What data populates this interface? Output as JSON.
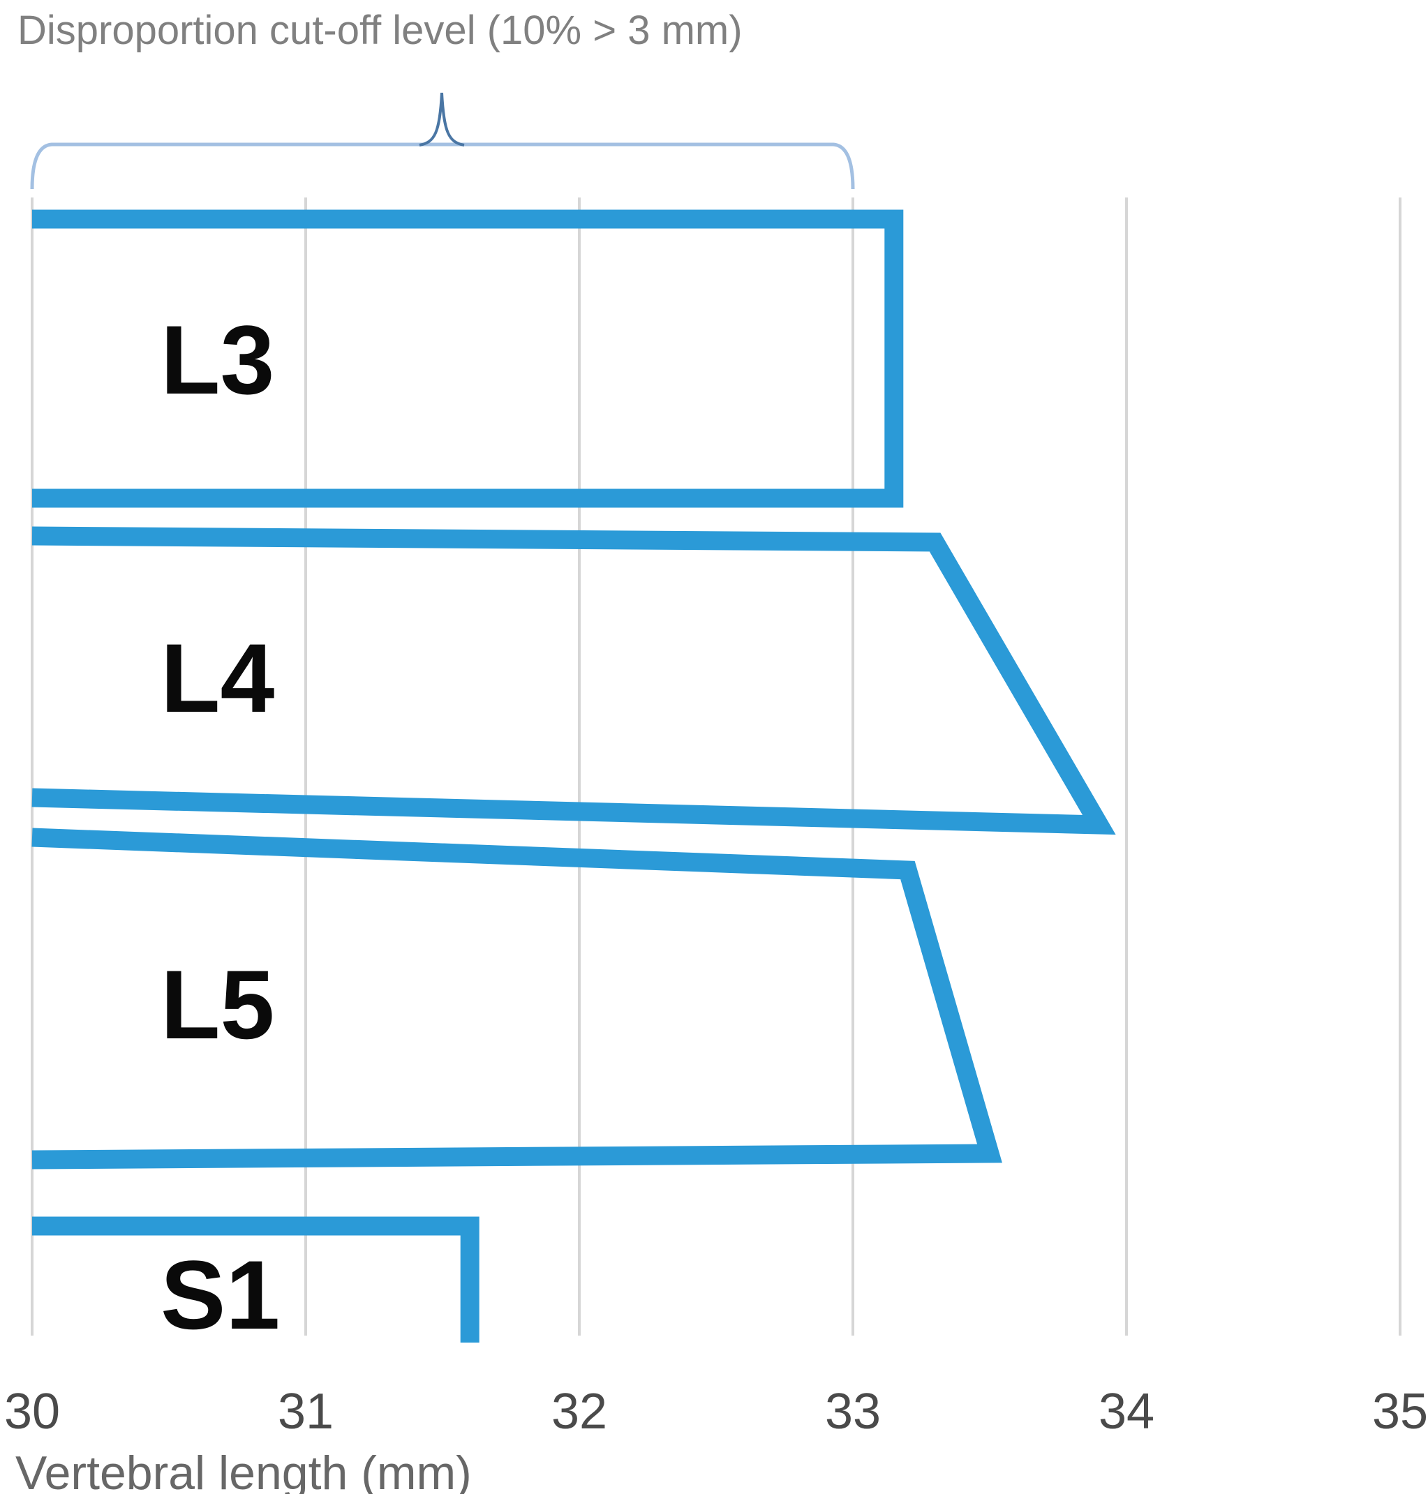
{
  "chart": {
    "title": "Disproportion cut-off level (10% > 3 mm)",
    "x_axis_label": "Vertebral length (mm)"
  },
  "chart_data": {
    "type": "bar",
    "orientation": "horizontal",
    "title": "Disproportion cut-off level (10% > 3 mm)",
    "xlabel": "Vertebral length (mm)",
    "xlim": [
      30,
      35
    ],
    "xticks": [
      "30",
      "31",
      "32",
      "33",
      "34",
      "35"
    ],
    "grid": true,
    "legend": false,
    "categories": [
      "L3",
      "L4",
      "L5",
      "S1"
    ],
    "bars": [
      {
        "label": "L3",
        "value_top": 33.15,
        "value_bottom": 33.15,
        "shape": "rectangle"
      },
      {
        "label": "L4",
        "value_top": 33.3,
        "value_bottom": 33.9,
        "shape": "trapezoid"
      },
      {
        "label": "L5",
        "value_top": 33.2,
        "value_bottom": 33.5,
        "shape": "trapezoid"
      },
      {
        "label": "S1",
        "value_top": 31.6,
        "value_bottom": 31.6,
        "shape": "rectangle",
        "clipped_at_plot_bottom": true
      }
    ],
    "bar_style": "white/transparent fill with thick blue outline; left side open at axis; L4 and L5 bottom edges extend further right than top edges (slanted right edge)",
    "annotation_brace": {
      "text": "Disproportion cut-off level (10% > 3 mm)",
      "span_mm": [
        30,
        33
      ],
      "peak_mm": 31.5
    },
    "colors": {
      "bar_outline": "#2b9ad7",
      "bar_fill": "none",
      "gridline": "#d6d6d6",
      "brace": "#a3c0e2",
      "brace_peak": "#4a76a4",
      "title_text": "#808080",
      "tick_text": "#4a4a4a",
      "axis_label_text": "#676767",
      "bar_label_text": "#0a0a0a"
    }
  }
}
